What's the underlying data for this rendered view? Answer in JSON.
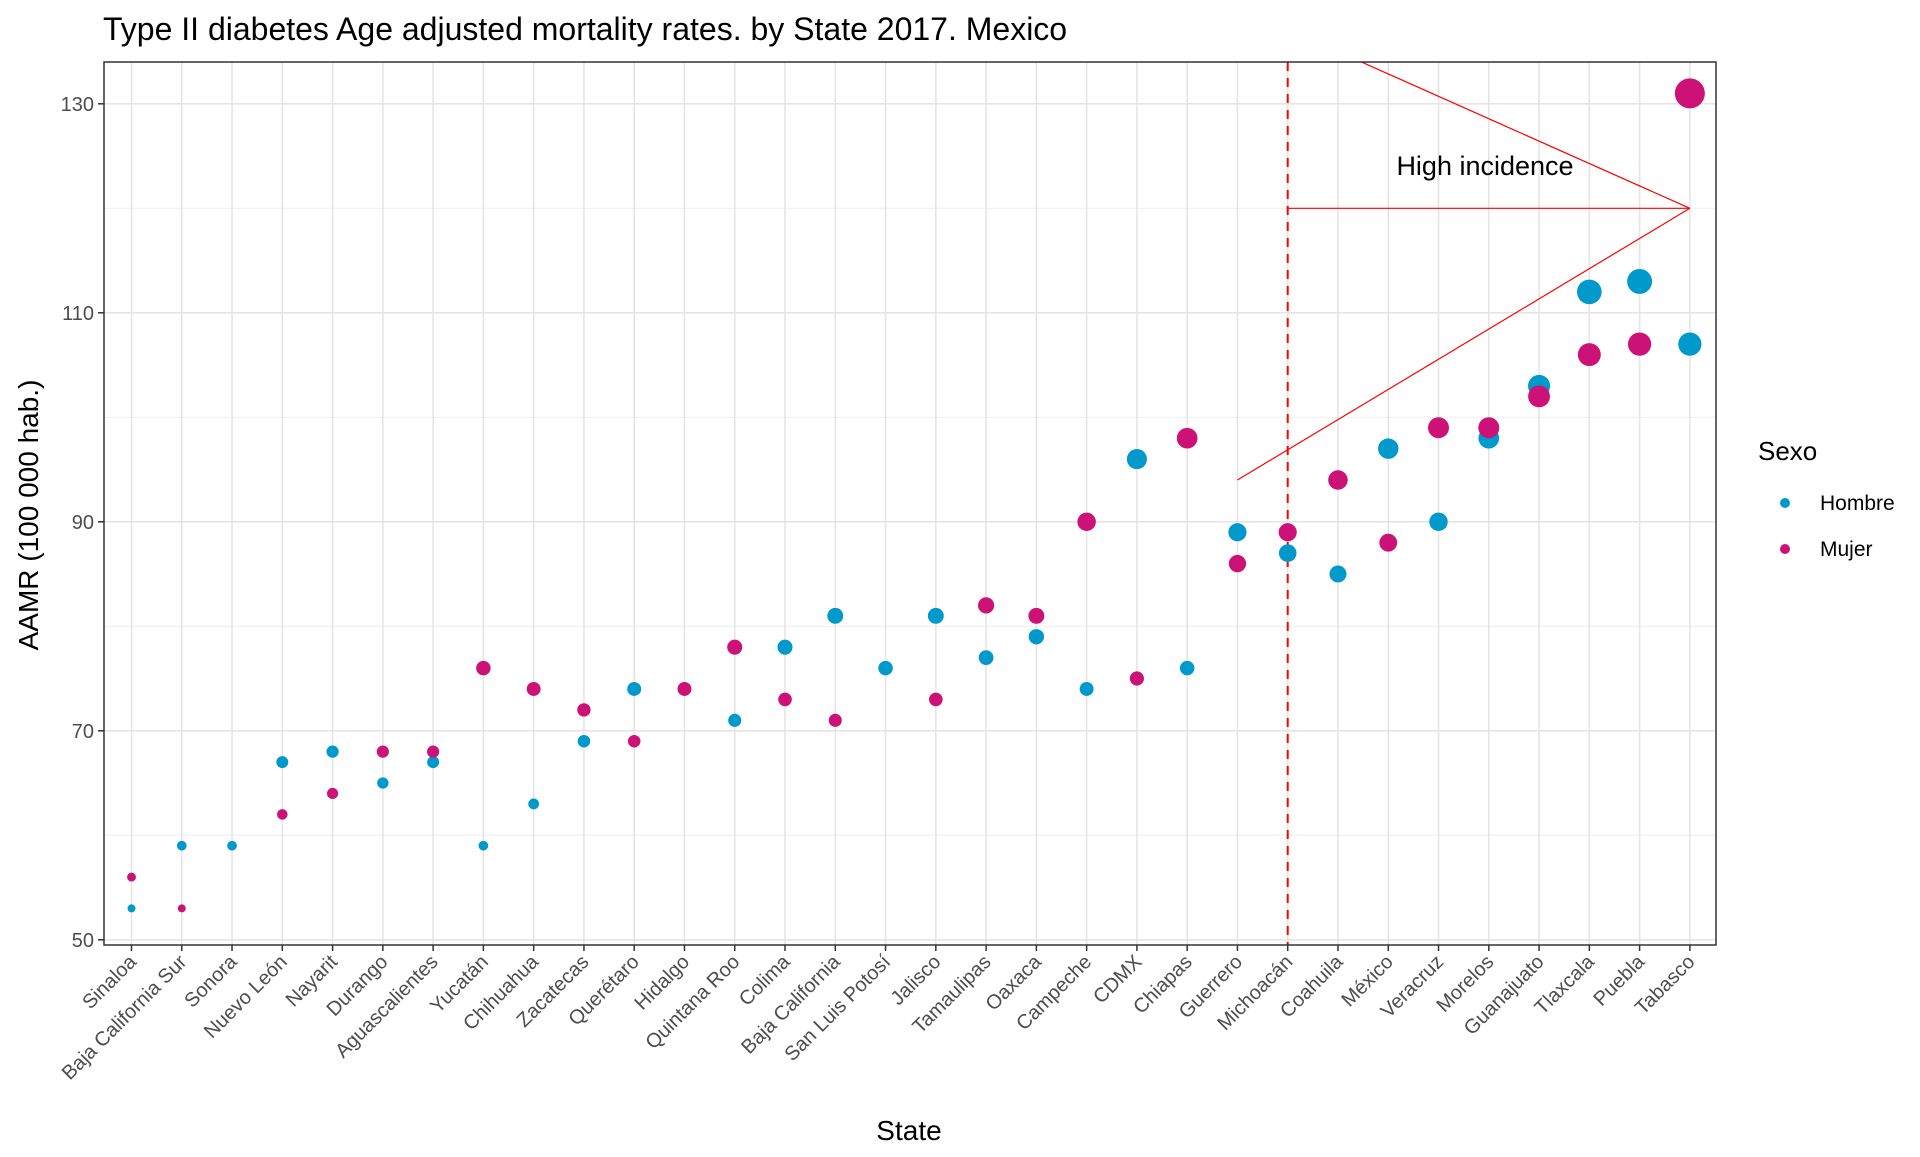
{
  "chart_data": {
    "type": "scatter",
    "title": "Type II diabetes Age adjusted mortality rates.  by State 2017. Mexico",
    "xlabel": "State",
    "ylabel": "AAMR (100 000 hab.)",
    "ylim": [
      49.5,
      134
    ],
    "yticks": [
      50,
      70,
      90,
      110,
      130
    ],
    "grid": true,
    "legend": {
      "title": "Sexo",
      "position": "right"
    },
    "categories": [
      "Sinaloa",
      "Baja California Sur",
      "Sonora",
      "Nuevo León",
      "Nayarit",
      "Durango",
      "Aguascalientes",
      "Yucatán",
      "Chihuahua",
      "Zacatecas",
      "Querétaro",
      "Hidalgo",
      "Quintana Roo",
      "Colima",
      "Baja California",
      "San Luis Potosí",
      "Jalisco",
      "Tamaulipas",
      "Oaxaca",
      "Campeche",
      "CDMX",
      "Chiapas",
      "Guerrero",
      "Michoacán",
      "Coahuila",
      "México",
      "Veracruz",
      "Morelos",
      "Guanajuato",
      "Tlaxcala",
      "Puebla",
      "Tabasco"
    ],
    "series": [
      {
        "name": "Hombre",
        "color": "#0099cc",
        "values": [
          53,
          59,
          59,
          67,
          68,
          65,
          67,
          59,
          63,
          69,
          74,
          null,
          71,
          78,
          81,
          76,
          81,
          77,
          79,
          74,
          96,
          76,
          89,
          87,
          85,
          97,
          90,
          98,
          103,
          112,
          113,
          107
        ]
      },
      {
        "name": "Mujer",
        "color": "#cc1177",
        "values": [
          56,
          53,
          null,
          62,
          64,
          68,
          68,
          76,
          74,
          72,
          69,
          74,
          78,
          73,
          71,
          null,
          73,
          82,
          81,
          90,
          75,
          98,
          86,
          89,
          94,
          88,
          99,
          99,
          102,
          106,
          107,
          131
        ]
      }
    ],
    "reference_line": {
      "x_category": "Michoacán",
      "color": "#ff0000",
      "style": "dashed"
    },
    "annotation": {
      "text": "High incidence",
      "color": "#ff0000",
      "arrows": [
        {
          "from": [
            "Michoacán",
            120
          ],
          "to": [
            "Tabasco",
            120
          ]
        },
        {
          "from": [
            "Guerrero",
            94
          ],
          "to": [
            "Tabasco",
            120
          ]
        },
        {
          "from": [
            "Coahuila",
            135
          ],
          "to": [
            "Tabasco",
            120
          ]
        }
      ]
    }
  }
}
